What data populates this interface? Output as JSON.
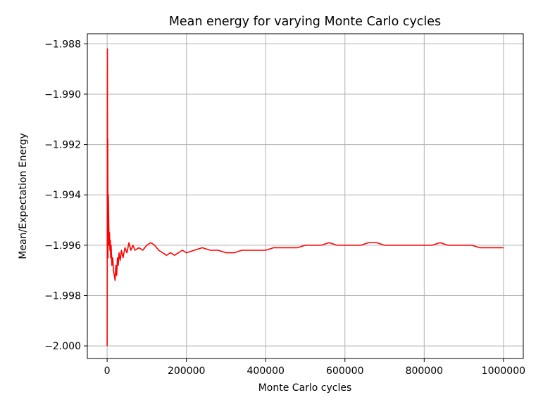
{
  "chart_data": {
    "type": "line",
    "title": "Mean energy for varying Monte Carlo cycles",
    "xlabel": "Monte Carlo cycles",
    "ylabel": "Mean/Expectation Energy",
    "xlim": [
      -50000,
      1050000
    ],
    "ylim": [
      -2.0005,
      -1.9876
    ],
    "xticks": [
      0,
      200000,
      400000,
      600000,
      800000,
      1000000
    ],
    "xtick_labels": [
      "0",
      "200000",
      "400000",
      "600000",
      "800000",
      "1000000"
    ],
    "yticks": [
      -2.0,
      -1.998,
      -1.996,
      -1.994,
      -1.992,
      -1.99,
      -1.988
    ],
    "ytick_labels": [
      "−2.000",
      "−1.998",
      "−1.996",
      "−1.994",
      "−1.992",
      "−1.990",
      "−1.988"
    ],
    "grid": true,
    "series": [
      {
        "color": "#ff0000",
        "x": [
          0,
          200,
          400,
          700,
          1000,
          1500,
          2000,
          3000,
          4000,
          5000,
          6000,
          7000,
          8000,
          9000,
          10000,
          12000,
          14000,
          16000,
          18000,
          20000,
          22000,
          24000,
          26000,
          28000,
          30000,
          33000,
          36000,
          40000,
          45000,
          50000,
          55000,
          60000,
          65000,
          70000,
          80000,
          90000,
          100000,
          110000,
          120000,
          130000,
          140000,
          150000,
          160000,
          170000,
          180000,
          190000,
          200000,
          220000,
          240000,
          260000,
          280000,
          300000,
          320000,
          340000,
          360000,
          380000,
          400000,
          420000,
          440000,
          460000,
          480000,
          500000,
          520000,
          540000,
          560000,
          580000,
          600000,
          620000,
          640000,
          660000,
          680000,
          700000,
          720000,
          740000,
          760000,
          780000,
          800000,
          820000,
          840000,
          860000,
          880000,
          900000,
          920000,
          940000,
          960000,
          980000,
          1000000
        ],
        "y": [
          -2.0,
          -1.997,
          -1.99,
          -1.9882,
          -1.996,
          -1.9918,
          -1.9965,
          -1.994,
          -1.995,
          -1.996,
          -1.9955,
          -1.9962,
          -1.9958,
          -1.9965,
          -1.996,
          -1.9968,
          -1.9965,
          -1.997,
          -1.9972,
          -1.9974,
          -1.9968,
          -1.9972,
          -1.9965,
          -1.9968,
          -1.9963,
          -1.9966,
          -1.9962,
          -1.9965,
          -1.9961,
          -1.9963,
          -1.9959,
          -1.9962,
          -1.996,
          -1.9962,
          -1.9961,
          -1.9962,
          -1.996,
          -1.9959,
          -1.996,
          -1.9962,
          -1.9963,
          -1.9964,
          -1.9963,
          -1.9964,
          -1.9963,
          -1.9962,
          -1.9963,
          -1.9962,
          -1.9961,
          -1.9962,
          -1.9962,
          -1.9963,
          -1.9963,
          -1.9962,
          -1.9962,
          -1.9962,
          -1.9962,
          -1.9961,
          -1.9961,
          -1.9961,
          -1.9961,
          -1.996,
          -1.996,
          -1.996,
          -1.9959,
          -1.996,
          -1.996,
          -1.996,
          -1.996,
          -1.9959,
          -1.9959,
          -1.996,
          -1.996,
          -1.996,
          -1.996,
          -1.996,
          -1.996,
          -1.996,
          -1.9959,
          -1.996,
          -1.996,
          -1.996,
          -1.996,
          -1.9961,
          -1.9961,
          -1.9961,
          -1.9961
        ]
      }
    ]
  }
}
